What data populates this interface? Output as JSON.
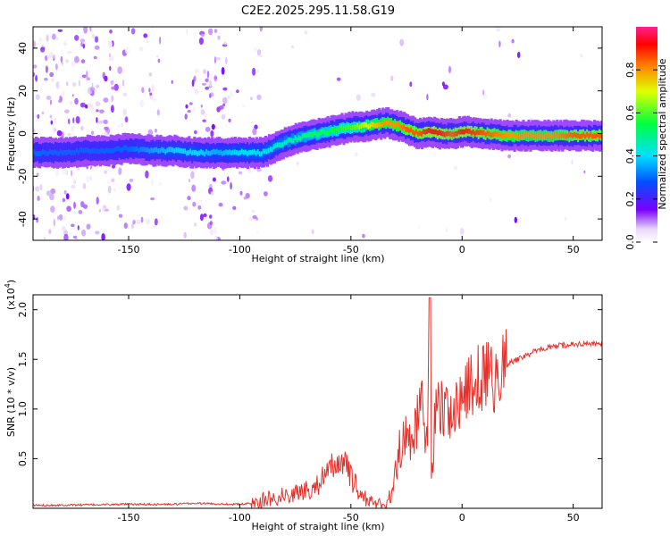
{
  "title": "C2E2.2025.295.11.58.G19",
  "chart_data": [
    {
      "type": "heatmap",
      "xlabel": "Height of straight line (km)",
      "ylabel": "Frequency (Hz)",
      "xlim": [
        -193,
        63
      ],
      "ylim": [
        -50,
        50
      ],
      "xticks": [
        -150,
        -100,
        -50,
        0,
        50
      ],
      "yticks": [
        -40,
        -20,
        0,
        20,
        40
      ],
      "xtick_labels": [
        "-150",
        "-100",
        "-50",
        "0",
        "50"
      ],
      "ytick_labels": [
        "-40",
        "-20",
        "0",
        "20",
        "40"
      ],
      "colorbar": {
        "label": "Normalized spectral amplitude",
        "range": [
          0,
          1
        ],
        "ticks": [
          0.0,
          0.2,
          0.4,
          0.6,
          0.8
        ],
        "tick_labels": [
          "0.0",
          "0.2",
          "0.4",
          "0.6",
          "0.8"
        ]
      },
      "ridge": {
        "x": [
          -193,
          -180,
          -170,
          -160,
          -150,
          -140,
          -130,
          -120,
          -110,
          -100,
          -90,
          -80,
          -70,
          -60,
          -50,
          -40,
          -35,
          -30,
          -25,
          -20,
          -15,
          -10,
          -5,
          0,
          10,
          20,
          30,
          40,
          50,
          63
        ],
        "frequency": [
          -9,
          -9,
          -8,
          -8,
          -7,
          -8,
          -8,
          -9,
          -9,
          -9,
          -9,
          -4,
          -1,
          1,
          3,
          4,
          5,
          4,
          2,
          0,
          1,
          0,
          0,
          1,
          0,
          -1,
          -1,
          -1,
          -1,
          -1
        ],
        "amplitude": [
          0.3,
          0.3,
          0.3,
          0.3,
          0.3,
          0.35,
          0.4,
          0.4,
          0.35,
          0.4,
          0.4,
          0.45,
          0.5,
          0.55,
          0.6,
          0.75,
          0.8,
          0.8,
          0.85,
          0.85,
          0.9,
          0.9,
          0.85,
          0.9,
          0.85,
          0.8,
          0.8,
          0.8,
          0.85,
          0.85
        ]
      }
    },
    {
      "type": "line",
      "xlabel": "Height of straight line (km)",
      "ylabel": "SNR (10 * v/v)",
      "scale_label": "(x10",
      "scale_exp": "4",
      "scale_close": ")",
      "xlim": [
        -193,
        63
      ],
      "ylim": [
        0,
        2.15
      ],
      "xticks": [
        -150,
        -100,
        -50,
        0,
        50
      ],
      "yticks": [
        0.5,
        1.0,
        1.5,
        2.0
      ],
      "xtick_labels": [
        "-150",
        "-100",
        "-50",
        "0",
        "50"
      ],
      "ytick_labels": [
        "0.5",
        "1.0",
        "1.5",
        "2.0"
      ],
      "series": [
        {
          "color": "#e8302a",
          "x": [
            -193,
            -150,
            -130,
            -120,
            -100,
            -95,
            -90,
            -80,
            -70,
            -65,
            -60,
            -57,
            -55,
            -52,
            -50,
            -45,
            -40,
            -35,
            -32,
            -30,
            -28,
            -25,
            -22,
            -20,
            -18,
            -16,
            -15,
            -14.5,
            -14,
            -12,
            -10,
            -5,
            0,
            5,
            10,
            15,
            20,
            25,
            30,
            35,
            40,
            45,
            50,
            55,
            63
          ],
          "y": [
            0.03,
            0.04,
            0.04,
            0.05,
            0.04,
            0.05,
            0.08,
            0.13,
            0.18,
            0.25,
            0.35,
            0.45,
            0.5,
            0.42,
            0.3,
            0.12,
            0.05,
            0.04,
            0.12,
            0.35,
            0.6,
            0.75,
            0.7,
            0.9,
            1.05,
            0.6,
            1.2,
            2.1,
            0.2,
            0.95,
            1.05,
            0.95,
            1.1,
            1.25,
            1.35,
            1.3,
            1.45,
            1.5,
            1.55,
            1.6,
            1.62,
            1.64,
            1.65,
            1.66,
            1.65
          ]
        }
      ]
    }
  ]
}
